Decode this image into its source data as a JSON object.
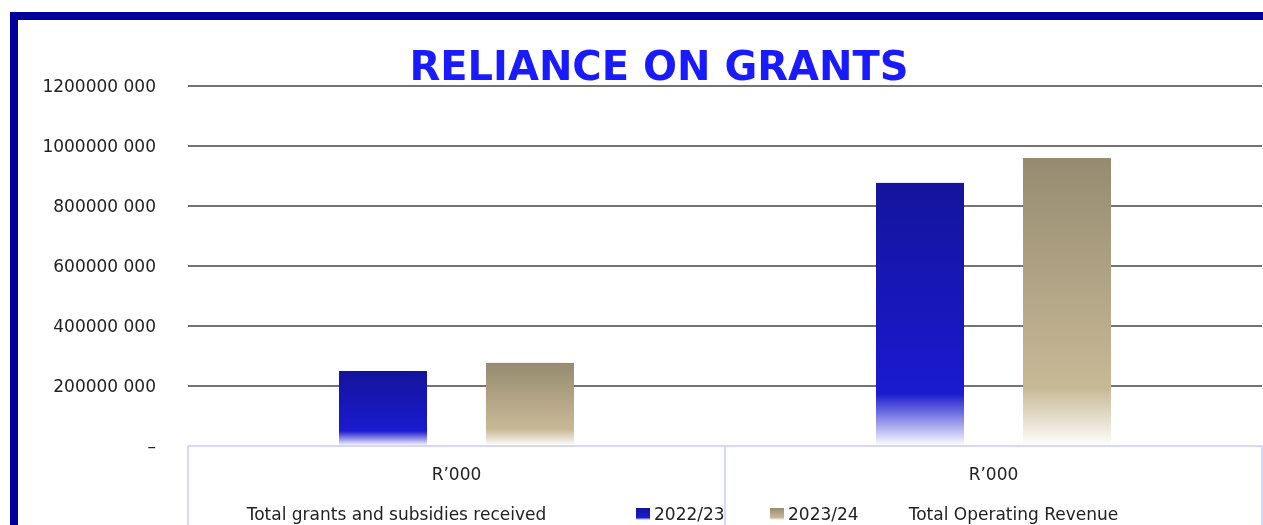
{
  "chart_data": {
    "type": "bar",
    "title": "RELIANCE ON GRANTS",
    "categories": [
      "Total grants and subsidies received",
      "Total Operating Revenue"
    ],
    "series": [
      {
        "name": "2022/23",
        "color": "#1a1ad0",
        "values": [
          250000000,
          877000000
        ]
      },
      {
        "name": "2023/24",
        "color": "#c8b996",
        "values": [
          277000000,
          960000000
        ]
      }
    ],
    "annotations": [
      "R’000",
      "R’000"
    ],
    "ylim": [
      0,
      1200000000
    ],
    "yticks": [
      {
        "value": 0,
        "label": "–"
      },
      {
        "value": 200000000,
        "label": "200000 000"
      },
      {
        "value": 400000000,
        "label": "400000 000"
      },
      {
        "value": 600000000,
        "label": "600000 000"
      },
      {
        "value": 800000000,
        "label": "800000 000"
      },
      {
        "value": 1000000000,
        "label": "1000000 000"
      },
      {
        "value": 1200000000,
        "label": "1200000 000"
      }
    ],
    "grid": "y",
    "legend": "bottom"
  }
}
